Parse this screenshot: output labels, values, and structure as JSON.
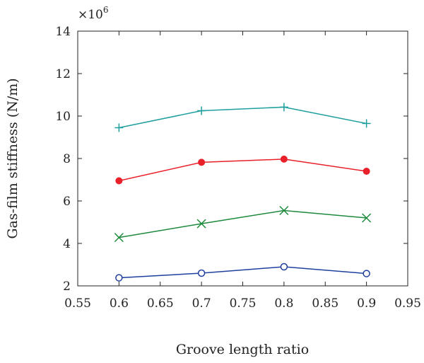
{
  "chart_data": {
    "type": "line",
    "title": "",
    "xlabel": "Groove length ratio",
    "ylabel": "Gas-film stiffness (N/m)",
    "y_multiplier": {
      "base": "×10",
      "exponent": "6"
    },
    "xlim": [
      0.55,
      0.95
    ],
    "ylim": [
      2,
      14
    ],
    "x_ticks": [
      0.55,
      0.6,
      0.65,
      0.7,
      0.75,
      0.8,
      0.85,
      0.9,
      0.95
    ],
    "y_ticks": [
      2,
      4,
      6,
      8,
      10,
      12,
      14
    ],
    "grid": false,
    "legend": "none",
    "x": [
      0.6,
      0.7,
      0.8,
      0.9
    ],
    "series": [
      {
        "color": "#1f9e9e",
        "marker": "plus",
        "values": [
          9.45,
          10.25,
          10.42,
          9.65
        ]
      },
      {
        "color": "#e8202a",
        "marker": "filled-circle",
        "values": [
          6.95,
          7.82,
          7.97,
          7.4
        ]
      },
      {
        "color": "#1e8a3c",
        "marker": "x",
        "values": [
          4.28,
          4.93,
          5.55,
          5.2
        ]
      },
      {
        "color": "#1f3f9e",
        "marker": "open-circle",
        "values": [
          2.38,
          2.6,
          2.9,
          2.58
        ]
      }
    ]
  }
}
